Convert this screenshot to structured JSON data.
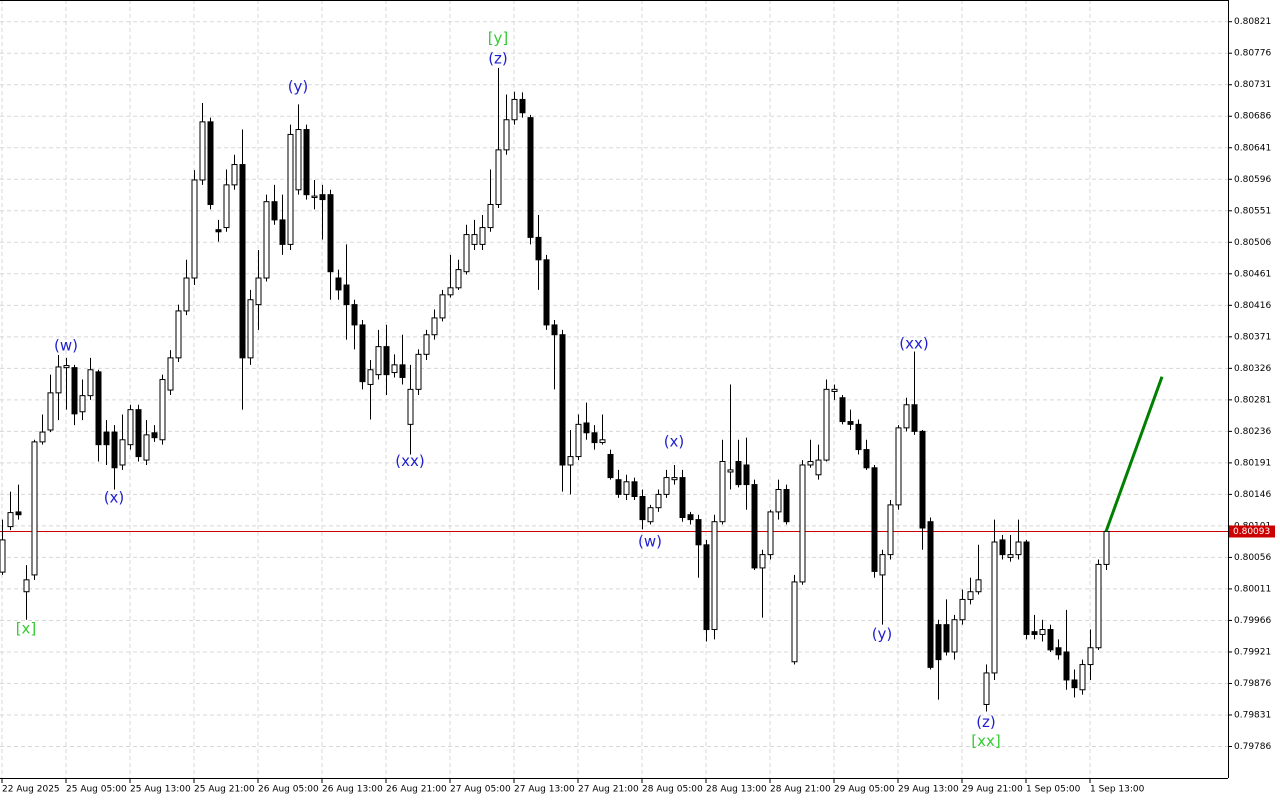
{
  "chart_data": {
    "type": "candlestick",
    "open": [
      0.80035,
      0.801,
      0.80121,
      0.80007,
      0.80031,
      0.80221,
      0.80238,
      0.80291,
      0.80327,
      0.80327,
      0.80264,
      0.80287,
      0.80321,
      0.80235,
      0.80235,
      0.80188,
      0.80217,
      0.80267,
      0.80195,
      0.80234,
      0.80224,
      0.80295,
      0.80341,
      0.80408,
      0.80455,
      0.80595,
      0.80678,
      0.80524,
      0.80527,
      0.80588,
      0.80617,
      0.80341,
      0.80417,
      0.80455,
      0.80564,
      0.80538,
      0.80503,
      0.80581,
      0.80667,
      0.8057,
      0.80574,
      0.80574,
      0.80455,
      0.80445,
      0.80417,
      0.80388,
      0.80303,
      0.80317,
      0.80357,
      0.8032,
      0.80331,
      0.80246,
      0.80296,
      0.80346,
      0.80374,
      0.80398,
      0.80431,
      0.80441,
      0.80464,
      0.80503,
      0.80503,
      0.80527,
      0.8056,
      0.80638,
      0.80681,
      0.8071,
      0.80684,
      0.80513,
      0.80481,
      0.80388,
      0.80374,
      0.80188,
      0.802,
      0.80248,
      0.80234,
      0.8022,
      0.80203,
      0.80167,
      0.80146,
      0.80164,
      0.80143,
      0.80107,
      0.80127,
      0.80146,
      0.80167,
      0.8017,
      0.80117,
      0.8011,
      0.80074,
      0.79953,
      0.80107,
      0.80178,
      0.80193,
      0.80188,
      0.8016,
      0.80041,
      0.8006,
      0.80121,
      0.80153,
      0.79907,
      0.80021,
      0.80188,
      0.80174,
      0.80195,
      0.80293,
      0.80284,
      0.8025,
      0.80246,
      0.8021,
      0.80184,
      0.80031,
      0.8006,
      0.80131,
      0.80241,
      0.80274,
      0.80236,
      0.80107,
      0.7996,
      0.7996,
      0.79921,
      0.79967,
      0.79996,
      0.80007,
      0.79846,
      0.79891,
      0.80081,
      0.80056,
      0.8006,
      0.80078,
      0.7995,
      0.79946,
      0.79953,
      0.79927,
      0.79921,
      0.79881,
      0.79867,
      0.79903,
      0.79927,
      0.80046
    ],
    "high": [
      0.8011,
      0.8015,
      0.8016,
      0.80045,
      0.80224,
      0.8026,
      0.80317,
      0.80345,
      0.80341,
      0.80331,
      0.8031,
      0.80341,
      0.80324,
      0.80252,
      0.80245,
      0.8026,
      0.80274,
      0.80274,
      0.80252,
      0.80245,
      0.80317,
      0.80352,
      0.80417,
      0.80481,
      0.80609,
      0.80705,
      0.80684,
      0.80538,
      0.8061,
      0.80631,
      0.80667,
      0.80438,
      0.80495,
      0.80574,
      0.80588,
      0.80574,
      0.80674,
      0.80703,
      0.80674,
      0.80595,
      0.80588,
      0.80581,
      0.80467,
      0.80503,
      0.80424,
      0.80395,
      0.80338,
      0.80381,
      0.80388,
      0.80346,
      0.80374,
      0.80331,
      0.80353,
      0.80381,
      0.8041,
      0.80438,
      0.80488,
      0.80481,
      0.80531,
      0.80538,
      0.80545,
      0.8061,
      0.80755,
      0.80717,
      0.80721,
      0.8072,
      0.80688,
      0.80545,
      0.80488,
      0.80395,
      0.80381,
      0.80238,
      0.8026,
      0.80277,
      0.80245,
      0.8026,
      0.8021,
      0.80181,
      0.80174,
      0.8017,
      0.80153,
      0.80131,
      0.80153,
      0.80181,
      0.80188,
      0.80181,
      0.80121,
      0.80117,
      0.80081,
      0.80117,
      0.80224,
      0.80303,
      0.80224,
      0.80227,
      0.80167,
      0.80067,
      0.80124,
      0.80167,
      0.8016,
      0.80031,
      0.80195,
      0.80224,
      0.80217,
      0.8031,
      0.80303,
      0.80288,
      0.80267,
      0.80253,
      0.80224,
      0.80188,
      0.80067,
      0.80138,
      0.80245,
      0.80284,
      0.8035,
      0.80238,
      0.80113,
      0.79967,
      0.79996,
      0.79974,
      0.8001,
      0.80027,
      0.80074,
      0.79903,
      0.8011,
      0.80088,
      0.80088,
      0.8011,
      0.80081,
      0.79974,
      0.79967,
      0.7996,
      0.79939,
      0.79981,
      0.79896,
      0.7991,
      0.79953,
      0.80053,
      0.80098
    ],
    "low": [
      0.80031,
      0.80095,
      0.8011,
      0.79967,
      0.80024,
      0.80217,
      0.80235,
      0.80252,
      0.80267,
      0.80245,
      0.80252,
      0.80281,
      0.80193,
      0.80188,
      0.80153,
      0.80181,
      0.8021,
      0.80193,
      0.80188,
      0.80221,
      0.80217,
      0.80288,
      0.80335,
      0.80402,
      0.80445,
      0.80588,
      0.80553,
      0.80507,
      0.80521,
      0.80581,
      0.80267,
      0.80331,
      0.80381,
      0.8045,
      0.80531,
      0.80488,
      0.80495,
      0.80574,
      0.80567,
      0.80553,
      0.8051,
      0.80424,
      0.80424,
      0.80367,
      0.80353,
      0.80296,
      0.80253,
      0.8031,
      0.80288,
      0.80313,
      0.80303,
      0.80203,
      0.80288,
      0.80338,
      0.80367,
      0.80393,
      0.80427,
      0.80438,
      0.8046,
      0.80495,
      0.80495,
      0.80521,
      0.80555,
      0.80631,
      0.80674,
      0.80684,
      0.80503,
      0.80438,
      0.80381,
      0.80296,
      0.8015,
      0.80146,
      0.80195,
      0.80224,
      0.8021,
      0.80217,
      0.80167,
      0.80141,
      0.80138,
      0.80138,
      0.80096,
      0.80103,
      0.80121,
      0.80141,
      0.8016,
      0.80107,
      0.80103,
      0.80027,
      0.79936,
      0.79939,
      0.80103,
      0.80153,
      0.80156,
      0.80124,
      0.80038,
      0.7997,
      0.80053,
      0.8011,
      0.80103,
      0.79903,
      0.80017,
      0.80184,
      0.80167,
      0.80193,
      0.80281,
      0.80246,
      0.80238,
      0.80203,
      0.80181,
      0.80027,
      0.7996,
      0.80053,
      0.80124,
      0.80236,
      0.80231,
      0.80067,
      0.79896,
      0.79853,
      0.79916,
      0.7991,
      0.7996,
      0.79989,
      0.80003,
      0.79836,
      0.79881,
      0.80053,
      0.8005,
      0.80053,
      0.79939,
      0.79939,
      0.79936,
      0.79921,
      0.7991,
      0.79867,
      0.79856,
      0.7986,
      0.79881,
      0.79924,
      0.80038
    ],
    "close": [
      0.80081,
      0.8012,
      0.80117,
      0.80024,
      0.80221,
      0.80235,
      0.80291,
      0.80328,
      0.8033,
      0.80261,
      0.80287,
      0.80324,
      0.80217,
      0.80217,
      0.80184,
      0.80224,
      0.80267,
      0.802,
      0.80231,
      0.80227,
      0.8031,
      0.80341,
      0.80408,
      0.80455,
      0.80595,
      0.80678,
      0.8056,
      0.80521,
      0.80588,
      0.80617,
      0.80341,
      0.80424,
      0.80455,
      0.80564,
      0.80538,
      0.80503,
      0.8066,
      0.80667,
      0.80574,
      0.80572,
      0.80567,
      0.80464,
      0.80438,
      0.80417,
      0.80388,
      0.80307,
      0.80324,
      0.80357,
      0.80317,
      0.80331,
      0.80313,
      0.80296,
      0.80346,
      0.80374,
      0.80398,
      0.80431,
      0.80441,
      0.80467,
      0.80517,
      0.80517,
      0.80527,
      0.8056,
      0.80638,
      0.80681,
      0.8071,
      0.80691,
      0.80513,
      0.80481,
      0.80388,
      0.80374,
      0.80188,
      0.802,
      0.80246,
      0.80234,
      0.8022,
      0.80224,
      0.8017,
      0.80146,
      0.80164,
      0.80143,
      0.8011,
      0.80127,
      0.80146,
      0.8017,
      0.8017,
      0.80113,
      0.8011,
      0.80074,
      0.79953,
      0.80107,
      0.80193,
      0.80181,
      0.8016,
      0.8016,
      0.80041,
      0.8006,
      0.80121,
      0.80153,
      0.80107,
      0.80021,
      0.80188,
      0.80193,
      0.80195,
      0.80296,
      0.80296,
      0.8025,
      0.80246,
      0.8021,
      0.80184,
      0.80036,
      0.8006,
      0.80131,
      0.80241,
      0.80274,
      0.80236,
      0.80098,
      0.79899,
      0.7991,
      0.79921,
      0.79967,
      0.79996,
      0.80007,
      0.80024,
      0.79891,
      0.80078,
      0.8006,
      0.8006,
      0.80078,
      0.79946,
      0.79946,
      0.79953,
      0.79924,
      0.79917,
      0.79881,
      0.7987,
      0.79903,
      0.79927,
      0.80046,
      0.80093
    ],
    "xlim": [
      -0.25,
      153.25
    ],
    "ylim": [
      0.79741,
      0.80852
    ],
    "yticks": [
      0.80821,
      0.80776,
      0.80731,
      0.80686,
      0.80641,
      0.80596,
      0.80551,
      0.80506,
      0.80461,
      0.80416,
      0.80371,
      0.80326,
      0.80281,
      0.80236,
      0.80191,
      0.80146,
      0.80101,
      0.80056,
      0.80011,
      0.79966,
      0.79921,
      0.79876,
      0.79831,
      0.79786
    ],
    "xticks": [
      {
        "value": 0,
        "label": "22 Aug 2025"
      },
      {
        "value": 8,
        "label": "25 Aug 05:00"
      },
      {
        "value": 16,
        "label": "25 Aug 13:00"
      },
      {
        "value": 24,
        "label": "25 Aug 21:00"
      },
      {
        "value": 32,
        "label": "26 Aug 05:00"
      },
      {
        "value": 40,
        "label": "26 Aug 13:00"
      },
      {
        "value": 48,
        "label": "26 Aug 21:00"
      },
      {
        "value": 56,
        "label": "27 Aug 05:00"
      },
      {
        "value": 64,
        "label": "27 Aug 13:00"
      },
      {
        "value": 72,
        "label": "27 Aug 21:00"
      },
      {
        "value": 80,
        "label": "28 Aug 05:00"
      },
      {
        "value": 88,
        "label": "28 Aug 13:00"
      },
      {
        "value": 96,
        "label": "28 Aug 21:00"
      },
      {
        "value": 104,
        "label": "29 Aug 05:00"
      },
      {
        "value": 112,
        "label": "29 Aug 13:00"
      },
      {
        "value": 120,
        "label": "29 Aug 21:00"
      },
      {
        "value": 128,
        "label": "1 Sep 05:00"
      },
      {
        "value": 136,
        "label": "1 Sep 13:00"
      }
    ],
    "grid": true,
    "up_color": "#ffffff",
    "down_color": "#000000",
    "price_line": {
      "value": 0.80093,
      "color": "#cc0000"
    },
    "forecast": {
      "color": "#008000",
      "x": [
        138,
        145
      ],
      "values": [
        0.80093,
        0.80314
      ]
    },
    "annotations": [
      {
        "text": "[x]",
        "color": "#33cc33",
        "x": 3,
        "y": 0.79954
      },
      {
        "text": "(w)",
        "color": "#1f1fd0",
        "x": 8,
        "y": 0.80358
      },
      {
        "text": "(x)",
        "color": "#1f1fd0",
        "x": 14,
        "y": 0.80141
      },
      {
        "text": "(y)",
        "color": "#1f1fd0",
        "x": 37,
        "y": 0.80728
      },
      {
        "text": "(xx)",
        "color": "#1f1fd0",
        "x": 51,
        "y": 0.80193
      },
      {
        "text": "[y]",
        "color": "#33cc33",
        "x": 62,
        "y": 0.80797
      },
      {
        "text": "(z)",
        "color": "#1f1fd0",
        "x": 62,
        "y": 0.80768
      },
      {
        "text": "(w)",
        "color": "#1f1fd0",
        "x": 81,
        "y": 0.80078
      },
      {
        "text": "(x)",
        "color": "#1f1fd0",
        "x": 84,
        "y": 0.80221
      },
      {
        "text": "(y)",
        "color": "#1f1fd0",
        "x": 110,
        "y": 0.79946
      },
      {
        "text": "(xx)",
        "color": "#1f1fd0",
        "x": 114,
        "y": 0.80361
      },
      {
        "text": "(z)",
        "color": "#1f1fd0",
        "x": 123,
        "y": 0.7982
      },
      {
        "text": "[xx]",
        "color": "#33cc33",
        "x": 123,
        "y": 0.79793
      }
    ]
  }
}
